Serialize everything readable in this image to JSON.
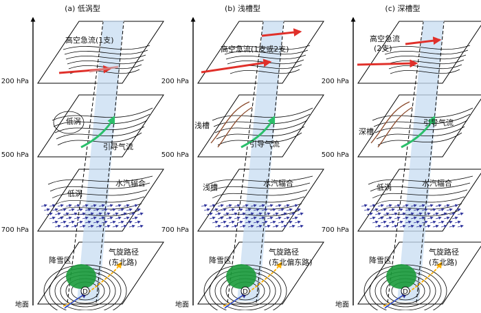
{
  "panels": [
    {
      "title": "(a) 低涡型",
      "layers": {
        "top": {
          "label": "高空急流(1支)"
        },
        "mid": {
          "labels": [
            "低涡",
            "引导气流"
          ]
        },
        "low": {
          "labels": [
            "低涡",
            "水汽辐合"
          ]
        },
        "ground": {
          "labels": [
            "降雪区",
            "气旋路径",
            "(东北路)",
            "D"
          ]
        }
      }
    },
    {
      "title": "(b) 浅槽型",
      "layers": {
        "top": {
          "label": "高空急流(1支或2支)"
        },
        "mid": {
          "labels": [
            "浅槽",
            "引导气流"
          ]
        },
        "low": {
          "labels": [
            "浅槽",
            "水汽辐合"
          ]
        },
        "ground": {
          "labels": [
            "降雪区",
            "气旋路径",
            "(东北偏东路)",
            "D"
          ]
        }
      }
    },
    {
      "title": "(c) 深槽型",
      "layers": {
        "top": {
          "label": "高空急流",
          "label2": "(2支)"
        },
        "mid": {
          "labels": [
            "深槽",
            "引导气流"
          ]
        },
        "low": {
          "labels": [
            "低涡",
            "水汽辐合"
          ]
        },
        "ground": {
          "labels": [
            "降雪区",
            "气旋路径",
            "(东北路)",
            "D"
          ]
        }
      }
    }
  ],
  "levels": [
    "200 hPa",
    "500 hPa",
    "700 hPa",
    "地面"
  ],
  "colors": {
    "jet": "#e0302a",
    "steering": "#2bbf6a",
    "snow": "#1a9a3a",
    "column": "#c7dcf2",
    "vapor": "#2a2f9a",
    "trough": "#8b4a2b",
    "track_a": "#ffb000",
    "track_b": "#3050d0"
  }
}
